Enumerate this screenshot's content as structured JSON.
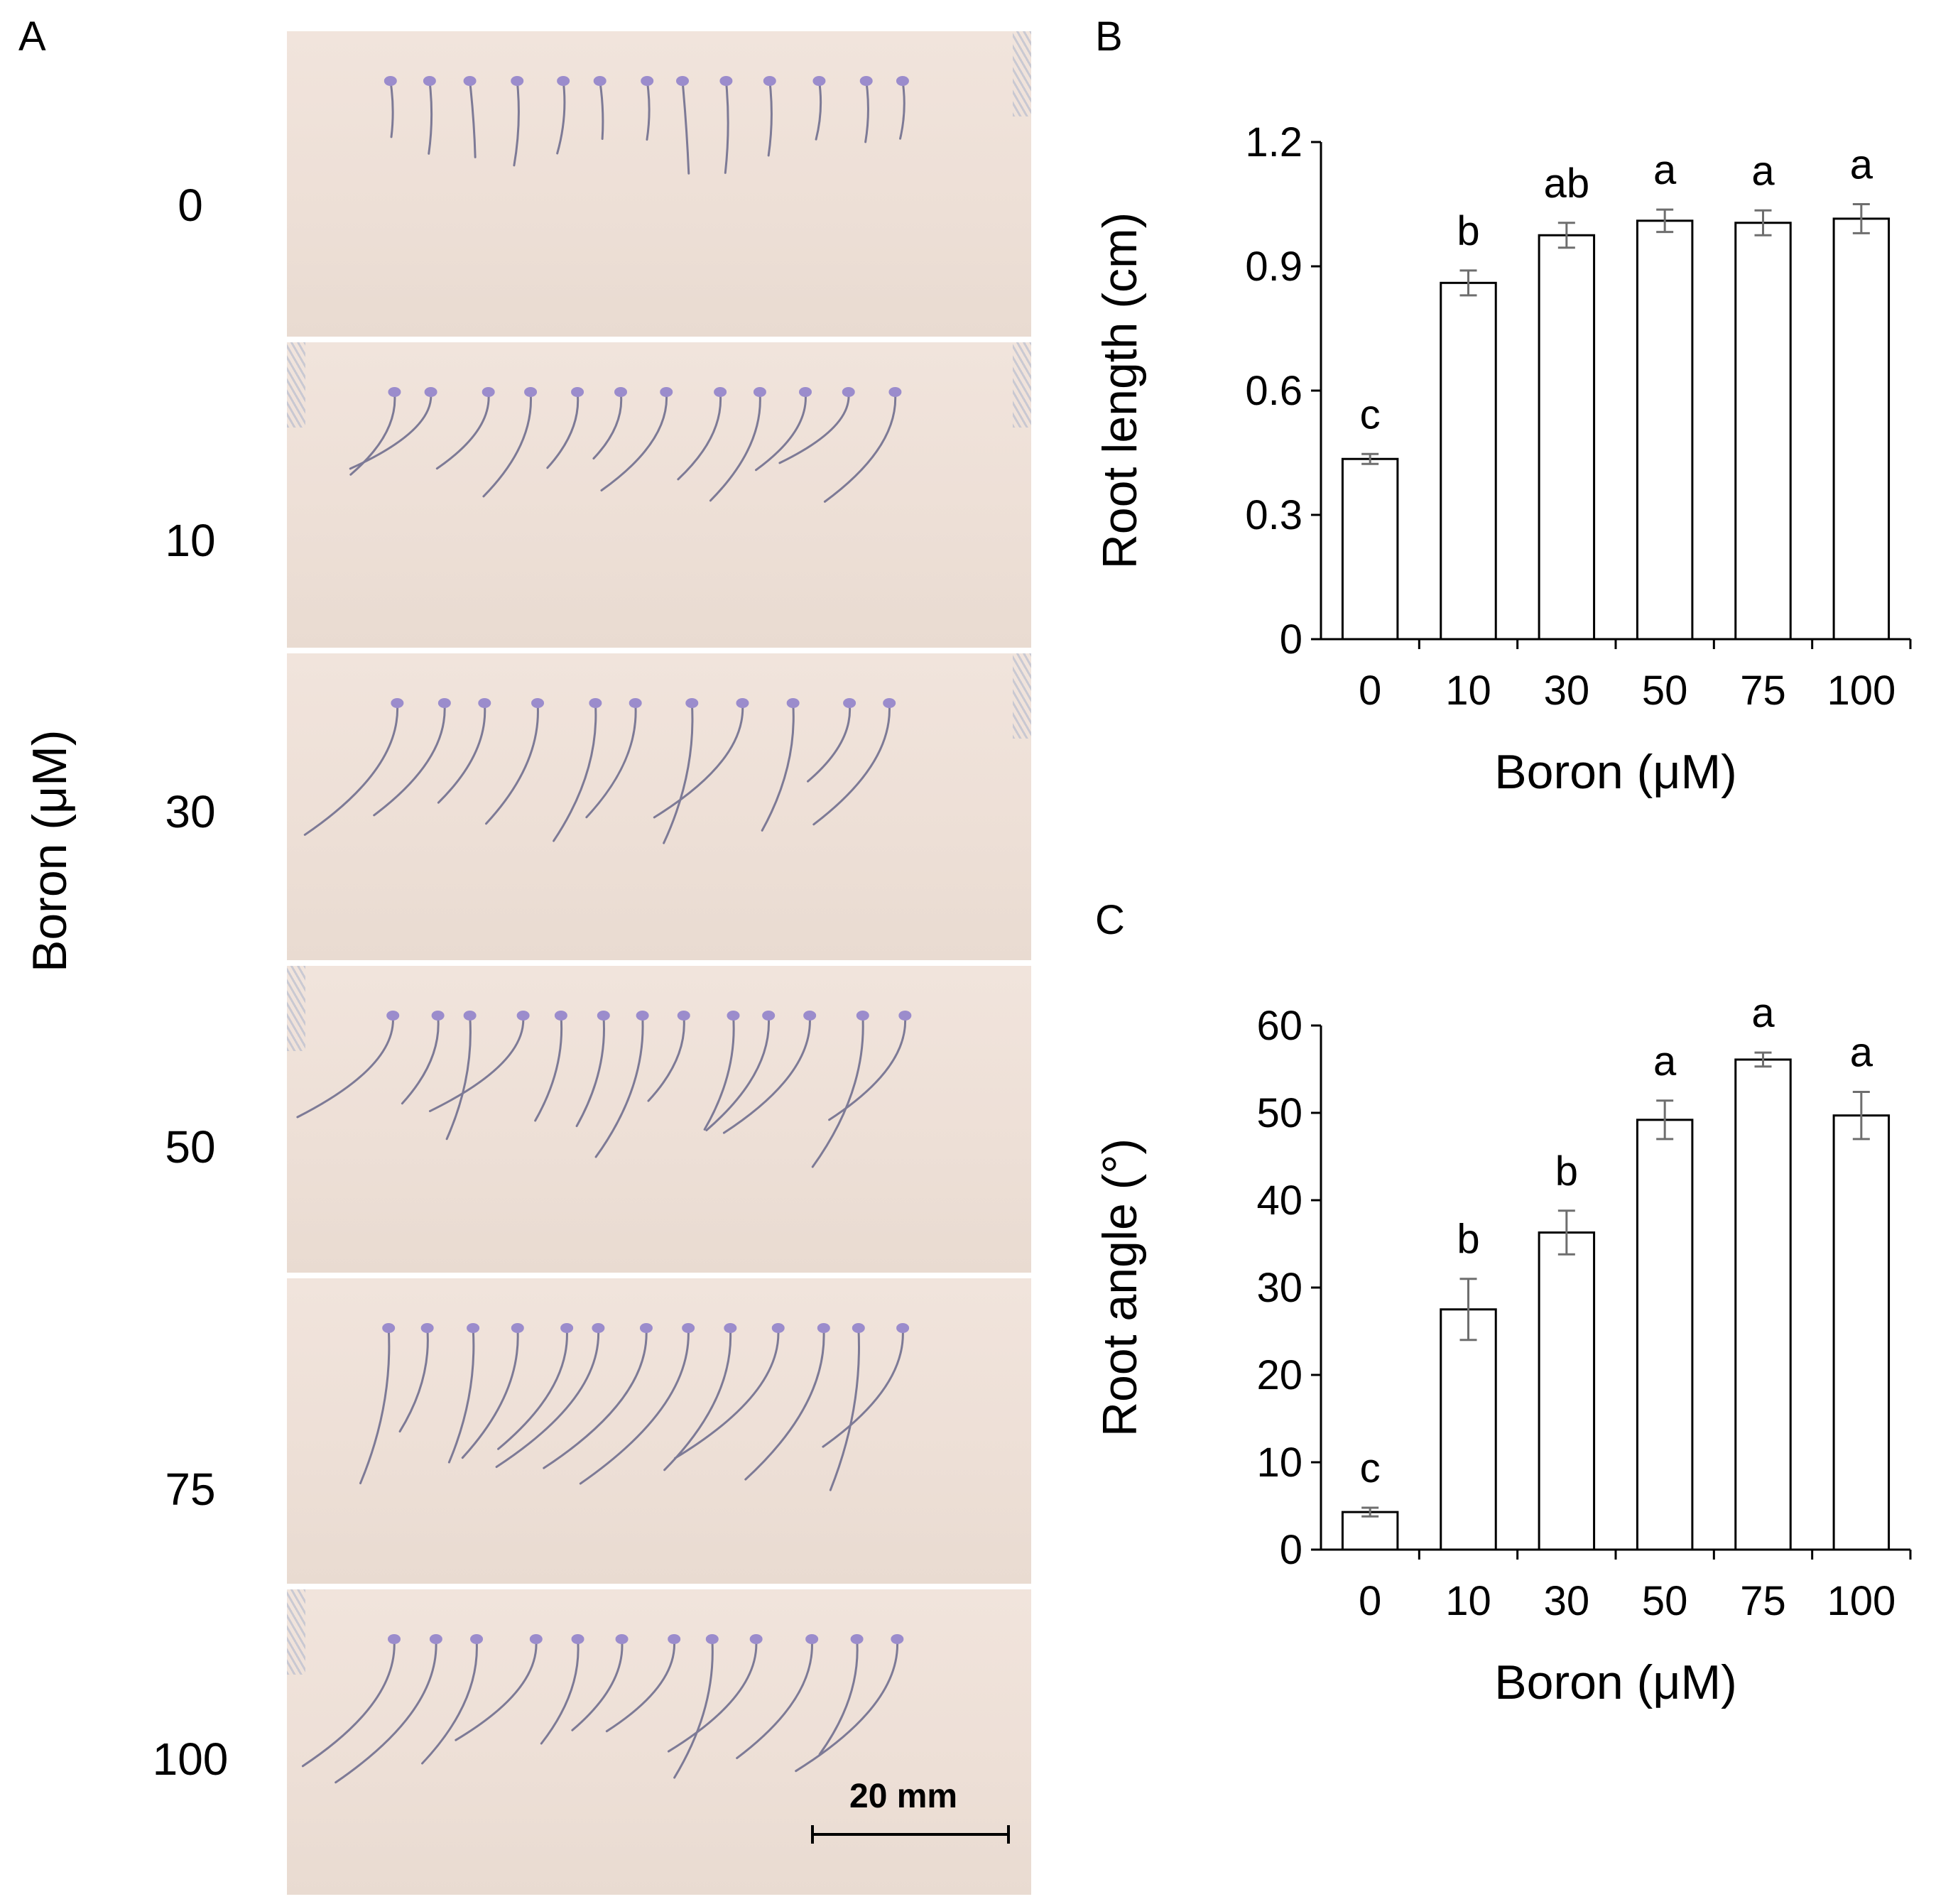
{
  "panel_a": {
    "letter": "A",
    "ylabel": "Boron (μM)",
    "rows": [
      "0",
      "10",
      "30",
      "50",
      "75",
      "100"
    ],
    "scalebar_label": "20 mm"
  },
  "chart_data": [
    {
      "type": "bar",
      "panel": "B",
      "categories": [
        "0",
        "10",
        "30",
        "50",
        "75",
        "100"
      ],
      "values": [
        0.435,
        0.86,
        0.975,
        1.01,
        1.005,
        1.015
      ],
      "errors": [
        0.012,
        0.03,
        0.03,
        0.027,
        0.03,
        0.035
      ],
      "significance": [
        "c",
        "b",
        "ab",
        "a",
        "a",
        "a"
      ],
      "xlabel": "Boron (μM)",
      "ylabel": "Root length (cm)",
      "ylim": [
        0,
        1.2
      ],
      "yticks": [
        "0",
        "0.3",
        "0.6",
        "0.9",
        "1.2"
      ],
      "ytick_values": [
        0,
        0.3,
        0.6,
        0.9,
        1.2
      ]
    },
    {
      "type": "bar",
      "panel": "C",
      "categories": [
        "0",
        "10",
        "30",
        "50",
        "75",
        "100"
      ],
      "values": [
        4.3,
        27.5,
        36.3,
        49.2,
        56.1,
        49.7
      ],
      "errors": [
        0.5,
        3.5,
        2.5,
        2.2,
        0.8,
        2.7
      ],
      "significance": [
        "c",
        "b",
        "b",
        "a",
        "a",
        "a"
      ],
      "xlabel": "Boron (μM)",
      "ylabel": "Root angle (°)",
      "ylim": [
        0,
        60
      ],
      "yticks": [
        "0",
        "10",
        "20",
        "30",
        "40",
        "50",
        "60"
      ],
      "ytick_values": [
        0,
        10,
        20,
        30,
        40,
        50,
        60
      ]
    }
  ]
}
